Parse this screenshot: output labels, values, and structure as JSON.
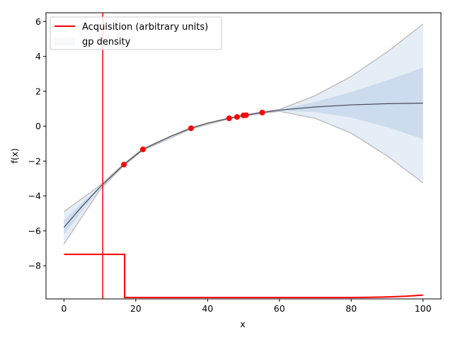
{
  "chart_data": {
    "type": "line",
    "xlabel": "x",
    "ylabel": "f(x)",
    "xlim": [
      -5,
      105
    ],
    "ylim": [
      -9.9,
      6.5
    ],
    "xticks": [
      0,
      20,
      40,
      60,
      80,
      100
    ],
    "yticks": [
      -8,
      -6,
      -4,
      -2,
      0,
      2,
      4,
      6
    ],
    "grid": false,
    "legend": {
      "placement": "top-left",
      "entries": [
        "Acquisition (arbitrary units)",
        "gp density"
      ]
    },
    "observations": {
      "x": [
        16.7,
        22,
        35.4,
        46,
        48.2,
        50,
        50.7,
        55.2
      ],
      "y": [
        -2.2,
        -1.33,
        -0.12,
        0.45,
        0.53,
        0.62,
        0.63,
        0.78
      ],
      "color": "#ff0000"
    },
    "gp_mean": {
      "x": [
        0,
        5,
        10,
        16.7,
        22,
        30,
        35.4,
        40,
        46,
        50,
        55.2,
        60,
        70,
        80,
        90,
        100
      ],
      "y": [
        -5.8,
        -4.6,
        -3.5,
        -2.2,
        -1.33,
        -0.55,
        -0.12,
        0.18,
        0.45,
        0.62,
        0.78,
        0.92,
        1.1,
        1.22,
        1.29,
        1.32
      ],
      "color": "#333344"
    },
    "gp_upper": {
      "x": [
        0,
        10,
        16.7,
        22,
        35.4,
        46,
        55.2,
        60,
        70,
        80,
        90,
        100
      ],
      "y": [
        -4.9,
        -3.4,
        -2.15,
        -1.28,
        -0.08,
        0.48,
        0.82,
        0.95,
        1.75,
        2.85,
        4.25,
        5.85
      ],
      "color": "#c0c0c0"
    },
    "gp_lower": {
      "x": [
        0,
        10,
        16.7,
        22,
        35.4,
        46,
        55.2,
        60,
        70,
        80,
        90,
        100
      ],
      "y": [
        -6.75,
        -3.65,
        -2.25,
        -1.38,
        -0.16,
        0.42,
        0.74,
        0.85,
        0.45,
        -0.4,
        -1.7,
        -3.25
      ],
      "color": "#c0c0c0"
    },
    "density_color": "#4a7fc1",
    "acquisition": {
      "color": "#ff0000",
      "x": [
        0,
        16.9,
        16.9,
        60,
        70,
        80,
        85,
        90,
        95,
        100
      ],
      "y": [
        -7.35,
        -7.35,
        -9.82,
        -9.82,
        -9.82,
        -9.82,
        -9.81,
        -9.79,
        -9.75,
        -9.68
      ]
    },
    "vline_x": 10.8
  }
}
